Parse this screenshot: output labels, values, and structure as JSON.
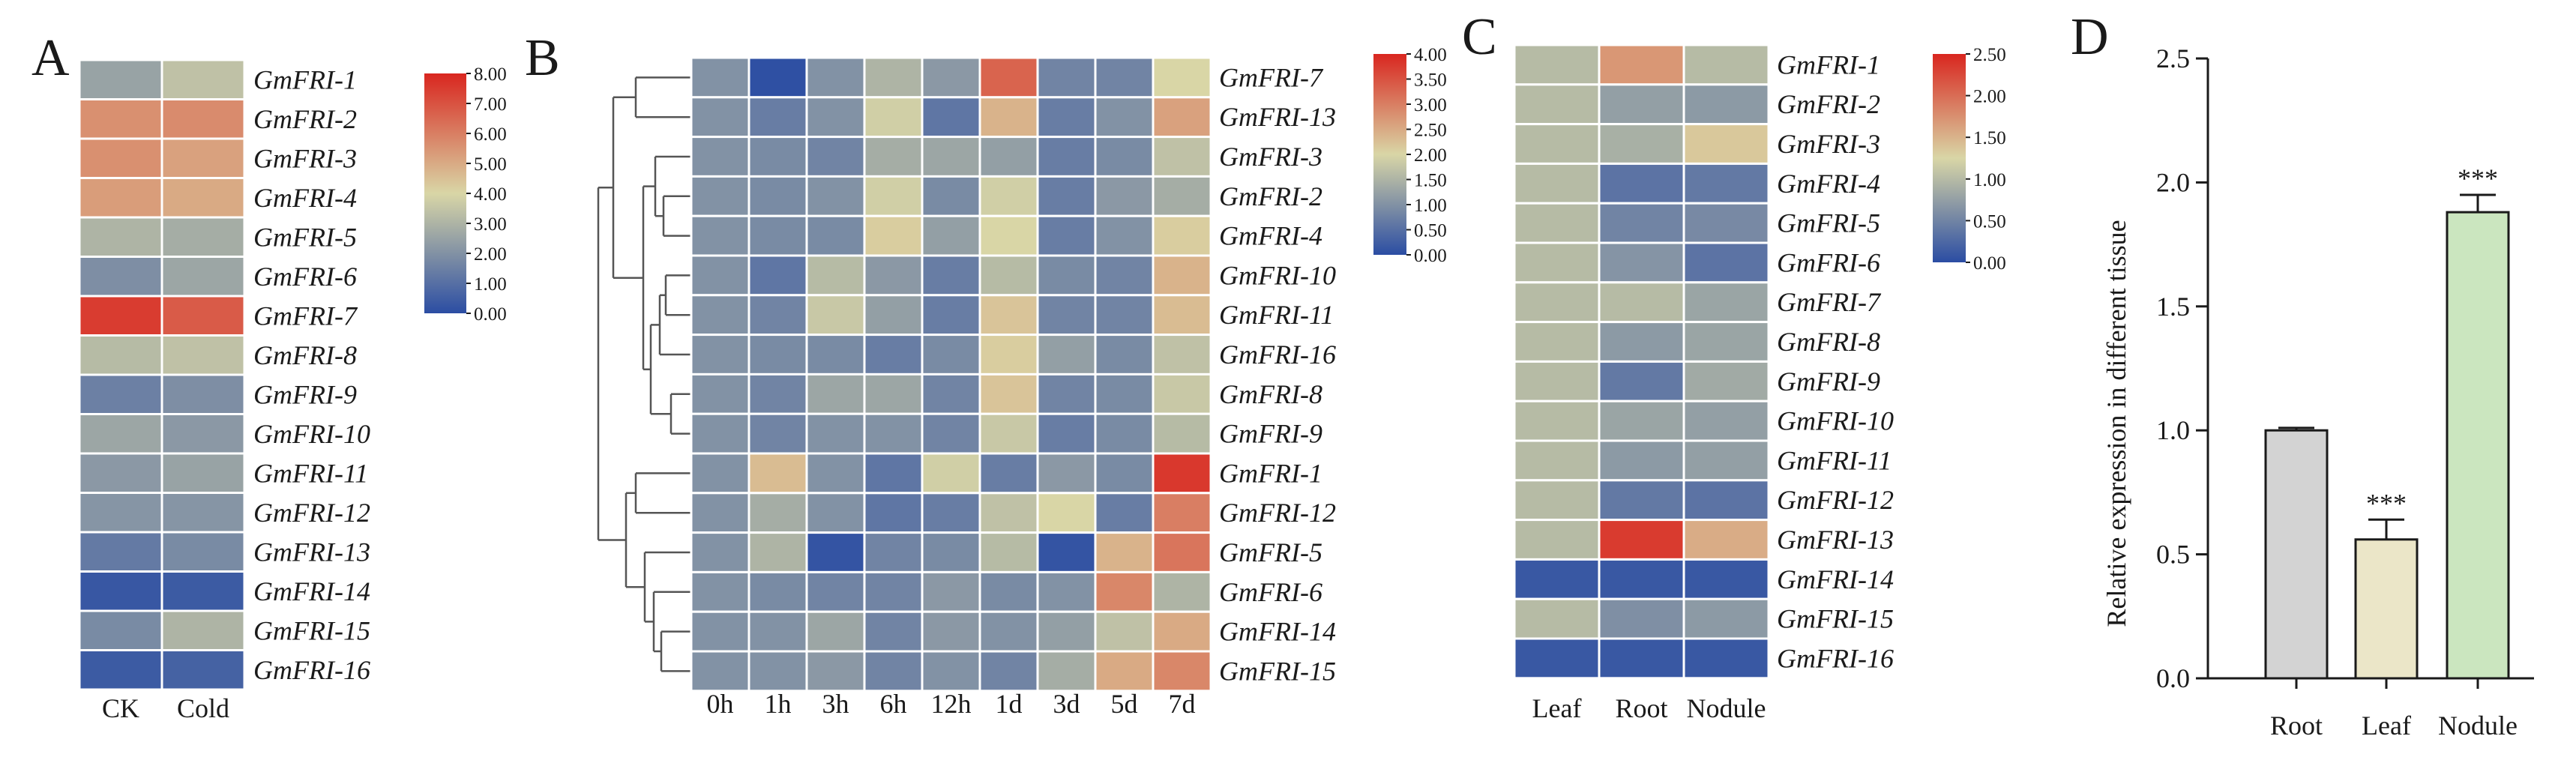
{
  "panels": {
    "a": "A",
    "b": "B",
    "c": "C",
    "d": "D"
  },
  "chart_data": [
    {
      "id": "A",
      "type": "heatmap",
      "rows": [
        "GmFRI-1",
        "GmFRI-2",
        "GmFRI-3",
        "GmFRI-4",
        "GmFRI-5",
        "GmFRI-6",
        "GmFRI-7",
        "GmFRI-8",
        "GmFRI-9",
        "GmFRI-10",
        "GmFRI-11",
        "GmFRI-12",
        "GmFRI-13",
        "GmFRI-14",
        "GmFRI-15",
        "GmFRI-16"
      ],
      "columns": [
        "CK",
        "Cold"
      ],
      "values": [
        [
          2.5,
          3.4
        ],
        [
          5.6,
          5.7
        ],
        [
          5.6,
          5.2
        ],
        [
          5.3,
          5.0
        ],
        [
          3.0,
          2.8
        ],
        [
          1.9,
          2.6
        ],
        [
          7.5,
          6.8
        ],
        [
          3.2,
          3.4
        ],
        [
          1.5,
          1.9
        ],
        [
          2.6,
          2.2
        ],
        [
          2.2,
          2.5
        ],
        [
          2.1,
          2.1
        ],
        [
          1.3,
          1.8
        ],
        [
          0.3,
          0.4
        ],
        [
          1.8,
          3.0
        ],
        [
          0.4,
          0.6
        ]
      ],
      "colorbar": {
        "min": 0,
        "max": 8,
        "ticks": [
          "8.00",
          "7.00",
          "6.00",
          "5.00",
          "4.00",
          "3.00",
          "2.00",
          "1.00",
          "0.00"
        ],
        "colors": [
          "#2b4da3",
          "#d9d6a6",
          "#d9261f"
        ]
      }
    },
    {
      "id": "B",
      "type": "heatmap",
      "rows": [
        "GmFRI-7",
        "GmFRI-13",
        "GmFRI-3",
        "GmFRI-2",
        "GmFRI-4",
        "GmFRI-10",
        "GmFRI-11",
        "GmFRI-16",
        "GmFRI-8",
        "GmFRI-9",
        "GmFRI-1",
        "GmFRI-12",
        "GmFRI-5",
        "GmFRI-6",
        "GmFRI-14",
        "GmFRI-15"
      ],
      "columns": [
        "0h",
        "1h",
        "3h",
        "6h",
        "12h",
        "1d",
        "3d",
        "5d",
        "7d"
      ],
      "values": [
        [
          1.0,
          0.05,
          1.0,
          1.5,
          1.1,
          3.3,
          0.8,
          0.8,
          2.0
        ],
        [
          1.0,
          0.7,
          1.0,
          1.9,
          0.6,
          2.4,
          0.7,
          1.0,
          2.6
        ],
        [
          1.0,
          0.9,
          0.8,
          1.4,
          1.3,
          1.2,
          0.7,
          0.9,
          1.7
        ],
        [
          1.0,
          0.9,
          1.0,
          1.9,
          0.9,
          1.9,
          0.7,
          1.1,
          1.4
        ],
        [
          1.0,
          0.9,
          0.9,
          2.1,
          1.2,
          2.0,
          0.7,
          1.0,
          2.1
        ],
        [
          1.0,
          0.6,
          1.6,
          1.1,
          0.7,
          1.6,
          0.9,
          0.8,
          2.4
        ],
        [
          1.0,
          0.8,
          1.8,
          1.2,
          0.7,
          2.2,
          0.8,
          0.8,
          2.3
        ],
        [
          1.0,
          0.9,
          0.9,
          0.7,
          0.9,
          2.1,
          1.2,
          0.9,
          1.7
        ],
        [
          1.0,
          0.8,
          1.3,
          1.3,
          0.8,
          2.2,
          0.8,
          0.9,
          1.8
        ],
        [
          1.0,
          0.8,
          1.0,
          1.0,
          0.8,
          1.8,
          0.7,
          0.9,
          1.6
        ],
        [
          1.0,
          2.3,
          1.0,
          0.6,
          1.9,
          0.7,
          1.1,
          0.9,
          3.8
        ],
        [
          1.0,
          1.4,
          1.0,
          0.6,
          0.7,
          1.7,
          2.0,
          0.7,
          3.0
        ],
        [
          1.0,
          1.5,
          0.1,
          0.8,
          0.9,
          1.6,
          0.1,
          2.4,
          3.1
        ],
        [
          1.0,
          0.9,
          0.8,
          0.8,
          1.1,
          0.9,
          1.0,
          2.9,
          1.5
        ],
        [
          1.0,
          1.0,
          1.3,
          0.8,
          1.1,
          1.0,
          1.2,
          1.7,
          2.5
        ],
        [
          1.0,
          1.0,
          1.1,
          0.8,
          1.0,
          0.8,
          1.4,
          2.5,
          2.9
        ]
      ],
      "colorbar": {
        "min": 0,
        "max": 4,
        "ticks": [
          "4.00",
          "3.50",
          "3.00",
          "2.50",
          "2.00",
          "1.50",
          "1.00",
          "0.50",
          "0.00"
        ],
        "colors": [
          "#2b4da3",
          "#d9d6a6",
          "#d9261f"
        ]
      }
    },
    {
      "id": "C",
      "type": "heatmap",
      "rows": [
        "GmFRI-1",
        "GmFRI-2",
        "GmFRI-3",
        "GmFRI-4",
        "GmFRI-5",
        "GmFRI-6",
        "GmFRI-7",
        "GmFRI-8",
        "GmFRI-9",
        "GmFRI-10",
        "GmFRI-11",
        "GmFRI-12",
        "GmFRI-13",
        "GmFRI-14",
        "GmFRI-15",
        "GmFRI-16"
      ],
      "columns": [
        "Leaf",
        "Root",
        "Nodule"
      ],
      "values": [
        [
          1.0,
          1.7,
          1.0
        ],
        [
          1.0,
          0.75,
          0.7
        ],
        [
          1.0,
          0.9,
          1.35
        ],
        [
          1.0,
          0.35,
          0.4
        ],
        [
          1.0,
          0.5,
          0.55
        ],
        [
          1.0,
          0.65,
          0.35
        ],
        [
          1.0,
          1.0,
          0.8
        ],
        [
          1.0,
          0.7,
          0.8
        ],
        [
          1.0,
          0.4,
          0.85
        ],
        [
          1.0,
          0.8,
          0.75
        ],
        [
          1.0,
          0.7,
          0.75
        ],
        [
          1.0,
          0.4,
          0.35
        ],
        [
          1.0,
          2.35,
          1.55
        ],
        [
          0.1,
          0.1,
          0.1
        ],
        [
          1.0,
          0.6,
          0.7
        ],
        [
          0.1,
          0.1,
          0.1
        ]
      ],
      "colorbar": {
        "min": 0,
        "max": 2.5,
        "ticks": [
          "2.50",
          "2.00",
          "1.50",
          "1.00",
          "0.50",
          "0.00"
        ],
        "colors": [
          "#2b4da3",
          "#d9d6a6",
          "#d9261f"
        ]
      }
    },
    {
      "id": "D",
      "type": "bar",
      "categories": [
        "Root",
        "Leaf",
        "Nodule"
      ],
      "values": [
        1.0,
        0.56,
        1.88
      ],
      "errors": [
        0.01,
        0.08,
        0.07
      ],
      "significance": [
        "",
        "***",
        "***"
      ],
      "colors": [
        "#d3d3d3",
        "#ebe6c8",
        "#cbe6bf"
      ],
      "ylabel": "Relative expression in different tissue",
      "ylim": [
        0,
        2.5
      ],
      "yticks": [
        "0.0",
        "0.5",
        "1.0",
        "1.5",
        "2.0",
        "2.5"
      ]
    }
  ]
}
